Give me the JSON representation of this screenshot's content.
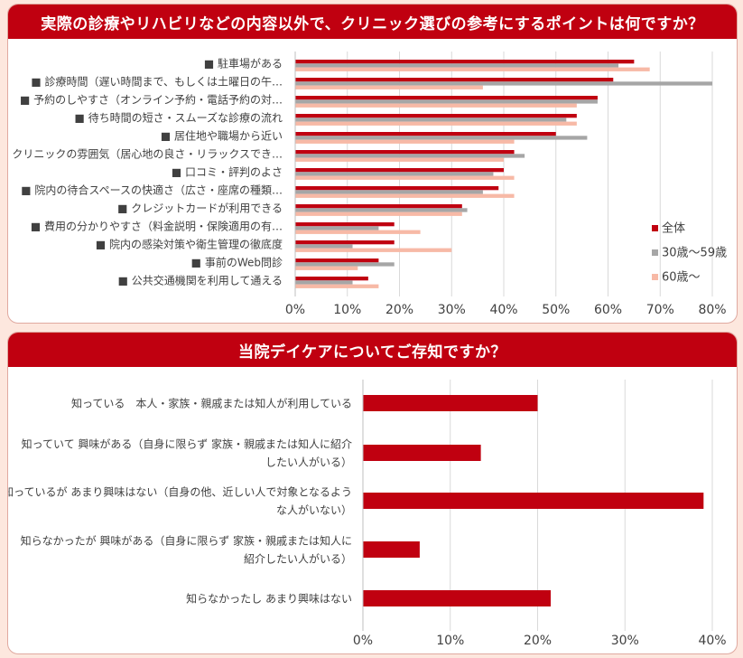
{
  "chart_data": [
    {
      "type": "bar",
      "orientation": "horizontal",
      "title": "実際の診療やリハビリなどの内容以外で、クリニック選びの参考にするポイントは何ですか？",
      "categories": [
        "駐車場がある",
        "診療時間（遅い時間まで、もしくは土曜日の午…",
        "予約のしやすさ（オンライン予約・電話予約の対…",
        "待ち時間の短さ・スムーズな診療の流れ",
        "居住地や職場から近い",
        "クリニックの雰囲気（居心地の良さ・リラックスでき…",
        "口コミ・評判のよさ",
        "院内の待合スペースの快適さ（広さ・座席の種類…",
        "クレジットカードが利用できる",
        "費用の分かりやすさ（料金説明・保険適用の有…",
        "院内の感染対策や衛生管理の徹底度",
        "事前のWeb問診",
        "公共交通機関を利用して通える"
      ],
      "series": [
        {
          "name": "全体",
          "color": "#c00010",
          "values": [
            65,
            61,
            58,
            54,
            50,
            42,
            40,
            39,
            32,
            19,
            19,
            16,
            14
          ]
        },
        {
          "name": "30歳～59歳",
          "color": "#a6a6a6",
          "values": [
            62,
            80,
            58,
            52,
            56,
            44,
            38,
            36,
            33,
            16,
            11,
            19,
            11
          ]
        },
        {
          "name": "60歳～",
          "color": "#f7b9a6",
          "values": [
            68,
            36,
            54,
            54,
            42,
            40,
            42,
            42,
            32,
            24,
            30,
            12,
            16
          ]
        }
      ],
      "xlim": [
        0,
        80
      ],
      "ticks": [
        "0%",
        "10%",
        "20%",
        "30%",
        "40%",
        "50%",
        "60%",
        "70%",
        "80%"
      ],
      "legend_position": "right",
      "grid": true
    },
    {
      "type": "bar",
      "orientation": "horizontal",
      "title": "当院デイケアについてご存知ですか？",
      "categories": [
        [
          "知っている　本人・家族・親戚または知人が利用している"
        ],
        [
          "知っていて 興味がある（自身に限らず 家族・親戚または知人に紹介",
          "したい人がいる）"
        ],
        [
          "知っているが あまり興味はない（自身の他、近しい人で対象となるよう",
          "な人がいない）"
        ],
        [
          "知らなかったが 興味がある（自身に限らず 家族・親戚または知人に",
          "紹介したい人がいる）"
        ],
        [
          "知らなかったし あまり興味はない"
        ]
      ],
      "series": [
        {
          "name": "",
          "color": "#c00010",
          "values": [
            20,
            13.5,
            39,
            6.5,
            21.5
          ]
        }
      ],
      "xlim": [
        0,
        40
      ],
      "ticks": [
        "0%",
        "10%",
        "20%",
        "30%",
        "40%"
      ],
      "grid": true
    }
  ]
}
